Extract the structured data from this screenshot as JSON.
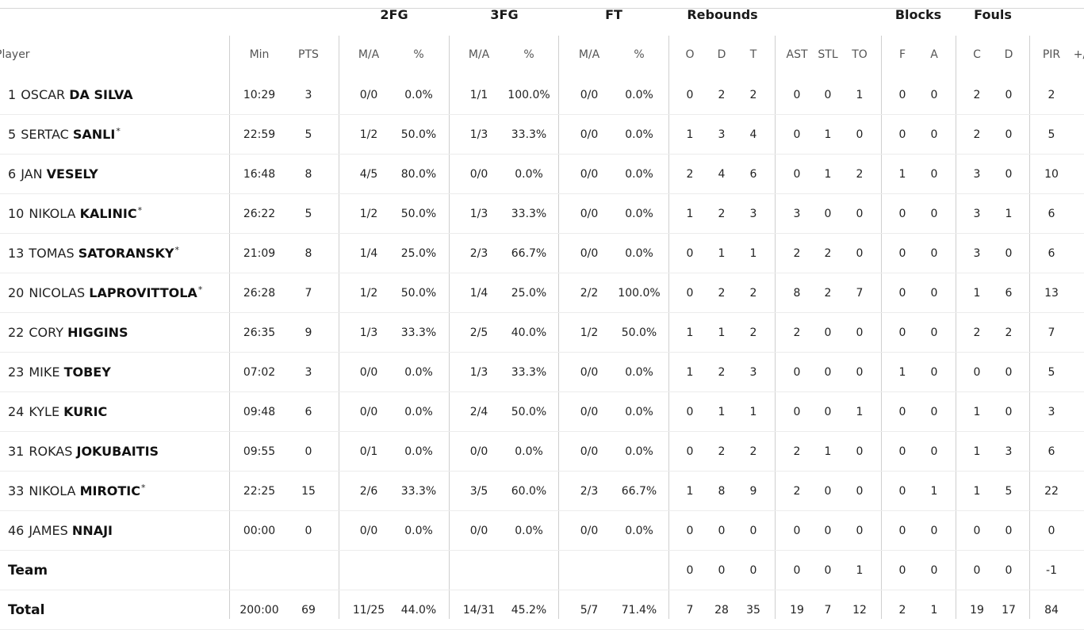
{
  "groups": {
    "fg2": "2FG",
    "fg3": "3FG",
    "ft": "FT",
    "rebounds": "Rebounds",
    "blocks": "Blocks",
    "fouls": "Fouls"
  },
  "columns": {
    "player": "Player",
    "min": "Min",
    "pts": "PTS",
    "fg2_ma": "M/A",
    "fg2_pct": "%",
    "fg3_ma": "M/A",
    "fg3_pct": "%",
    "ft_ma": "M/A",
    "ft_pct": "%",
    "reb_o": "O",
    "reb_d": "D",
    "reb_t": "T",
    "ast": "AST",
    "stl": "STL",
    "to": "TO",
    "blk_f": "F",
    "blk_a": "A",
    "foul_c": "C",
    "foul_d": "D",
    "pir": "PIR",
    "pm": "+/"
  },
  "players": [
    {
      "number": "1",
      "first": "OSCAR",
      "last": "DA SILVA",
      "starter": "",
      "min": "10:29",
      "pts": "3",
      "fg2_ma": "0/0",
      "fg2_pct": "0.0%",
      "fg3_ma": "1/1",
      "fg3_pct": "100.0%",
      "ft_ma": "0/0",
      "ft_pct": "0.0%",
      "reb_o": "0",
      "reb_d": "2",
      "reb_t": "2",
      "ast": "0",
      "stl": "0",
      "to": "1",
      "blk_f": "0",
      "blk_a": "0",
      "foul_c": "2",
      "foul_d": "0",
      "pir": "2"
    },
    {
      "number": "5",
      "first": "SERTAC",
      "last": "SANLI",
      "starter": "*",
      "min": "22:59",
      "pts": "5",
      "fg2_ma": "1/2",
      "fg2_pct": "50.0%",
      "fg3_ma": "1/3",
      "fg3_pct": "33.3%",
      "ft_ma": "0/0",
      "ft_pct": "0.0%",
      "reb_o": "1",
      "reb_d": "3",
      "reb_t": "4",
      "ast": "0",
      "stl": "1",
      "to": "0",
      "blk_f": "0",
      "blk_a": "0",
      "foul_c": "2",
      "foul_d": "0",
      "pir": "5"
    },
    {
      "number": "6",
      "first": "JAN",
      "last": "VESELY",
      "starter": "",
      "min": "16:48",
      "pts": "8",
      "fg2_ma": "4/5",
      "fg2_pct": "80.0%",
      "fg3_ma": "0/0",
      "fg3_pct": "0.0%",
      "ft_ma": "0/0",
      "ft_pct": "0.0%",
      "reb_o": "2",
      "reb_d": "4",
      "reb_t": "6",
      "ast": "0",
      "stl": "1",
      "to": "2",
      "blk_f": "1",
      "blk_a": "0",
      "foul_c": "3",
      "foul_d": "0",
      "pir": "10"
    },
    {
      "number": "10",
      "first": "NIKOLA",
      "last": "KALINIC",
      "starter": "*",
      "min": "26:22",
      "pts": "5",
      "fg2_ma": "1/2",
      "fg2_pct": "50.0%",
      "fg3_ma": "1/3",
      "fg3_pct": "33.3%",
      "ft_ma": "0/0",
      "ft_pct": "0.0%",
      "reb_o": "1",
      "reb_d": "2",
      "reb_t": "3",
      "ast": "3",
      "stl": "0",
      "to": "0",
      "blk_f": "0",
      "blk_a": "0",
      "foul_c": "3",
      "foul_d": "1",
      "pir": "6"
    },
    {
      "number": "13",
      "first": "TOMAS",
      "last": "SATORANSKY",
      "starter": "*",
      "min": "21:09",
      "pts": "8",
      "fg2_ma": "1/4",
      "fg2_pct": "25.0%",
      "fg3_ma": "2/3",
      "fg3_pct": "66.7%",
      "ft_ma": "0/0",
      "ft_pct": "0.0%",
      "reb_o": "0",
      "reb_d": "1",
      "reb_t": "1",
      "ast": "2",
      "stl": "2",
      "to": "0",
      "blk_f": "0",
      "blk_a": "0",
      "foul_c": "3",
      "foul_d": "0",
      "pir": "6"
    },
    {
      "number": "20",
      "first": "NICOLAS",
      "last": "LAPROVITTOLA",
      "starter": "*",
      "min": "26:28",
      "pts": "7",
      "fg2_ma": "1/2",
      "fg2_pct": "50.0%",
      "fg3_ma": "1/4",
      "fg3_pct": "25.0%",
      "ft_ma": "2/2",
      "ft_pct": "100.0%",
      "reb_o": "0",
      "reb_d": "2",
      "reb_t": "2",
      "ast": "8",
      "stl": "2",
      "to": "7",
      "blk_f": "0",
      "blk_a": "0",
      "foul_c": "1",
      "foul_d": "6",
      "pir": "13"
    },
    {
      "number": "22",
      "first": "CORY",
      "last": "HIGGINS",
      "starter": "",
      "min": "26:35",
      "pts": "9",
      "fg2_ma": "1/3",
      "fg2_pct": "33.3%",
      "fg3_ma": "2/5",
      "fg3_pct": "40.0%",
      "ft_ma": "1/2",
      "ft_pct": "50.0%",
      "reb_o": "1",
      "reb_d": "1",
      "reb_t": "2",
      "ast": "2",
      "stl": "0",
      "to": "0",
      "blk_f": "0",
      "blk_a": "0",
      "foul_c": "2",
      "foul_d": "2",
      "pir": "7"
    },
    {
      "number": "23",
      "first": "MIKE",
      "last": "TOBEY",
      "starter": "",
      "min": "07:02",
      "pts": "3",
      "fg2_ma": "0/0",
      "fg2_pct": "0.0%",
      "fg3_ma": "1/3",
      "fg3_pct": "33.3%",
      "ft_ma": "0/0",
      "ft_pct": "0.0%",
      "reb_o": "1",
      "reb_d": "2",
      "reb_t": "3",
      "ast": "0",
      "stl": "0",
      "to": "0",
      "blk_f": "1",
      "blk_a": "0",
      "foul_c": "0",
      "foul_d": "0",
      "pir": "5"
    },
    {
      "number": "24",
      "first": "KYLE",
      "last": "KURIC",
      "starter": "",
      "min": "09:48",
      "pts": "6",
      "fg2_ma": "0/0",
      "fg2_pct": "0.0%",
      "fg3_ma": "2/4",
      "fg3_pct": "50.0%",
      "ft_ma": "0/0",
      "ft_pct": "0.0%",
      "reb_o": "0",
      "reb_d": "1",
      "reb_t": "1",
      "ast": "0",
      "stl": "0",
      "to": "1",
      "blk_f": "0",
      "blk_a": "0",
      "foul_c": "1",
      "foul_d": "0",
      "pir": "3"
    },
    {
      "number": "31",
      "first": "ROKAS",
      "last": "JOKUBAITIS",
      "starter": "",
      "min": "09:55",
      "pts": "0",
      "fg2_ma": "0/1",
      "fg2_pct": "0.0%",
      "fg3_ma": "0/0",
      "fg3_pct": "0.0%",
      "ft_ma": "0/0",
      "ft_pct": "0.0%",
      "reb_o": "0",
      "reb_d": "2",
      "reb_t": "2",
      "ast": "2",
      "stl": "1",
      "to": "0",
      "blk_f": "0",
      "blk_a": "0",
      "foul_c": "1",
      "foul_d": "3",
      "pir": "6"
    },
    {
      "number": "33",
      "first": "NIKOLA",
      "last": "MIROTIC",
      "starter": "*",
      "min": "22:25",
      "pts": "15",
      "fg2_ma": "2/6",
      "fg2_pct": "33.3%",
      "fg3_ma": "3/5",
      "fg3_pct": "60.0%",
      "ft_ma": "2/3",
      "ft_pct": "66.7%",
      "reb_o": "1",
      "reb_d": "8",
      "reb_t": "9",
      "ast": "2",
      "stl": "0",
      "to": "0",
      "blk_f": "0",
      "blk_a": "1",
      "foul_c": "1",
      "foul_d": "5",
      "pir": "22"
    },
    {
      "number": "46",
      "first": "JAMES",
      "last": "NNAJI",
      "starter": "",
      "min": "00:00",
      "pts": "0",
      "fg2_ma": "0/0",
      "fg2_pct": "0.0%",
      "fg3_ma": "0/0",
      "fg3_pct": "0.0%",
      "ft_ma": "0/0",
      "ft_pct": "0.0%",
      "reb_o": "0",
      "reb_d": "0",
      "reb_t": "0",
      "ast": "0",
      "stl": "0",
      "to": "0",
      "blk_f": "0",
      "blk_a": "0",
      "foul_c": "0",
      "foul_d": "0",
      "pir": "0"
    }
  ],
  "team": {
    "label": "Team",
    "min": "",
    "pts": "",
    "fg2_ma": "",
    "fg2_pct": "",
    "fg3_ma": "",
    "fg3_pct": "",
    "ft_ma": "",
    "ft_pct": "",
    "reb_o": "0",
    "reb_d": "0",
    "reb_t": "0",
    "ast": "0",
    "stl": "0",
    "to": "1",
    "blk_f": "0",
    "blk_a": "0",
    "foul_c": "0",
    "foul_d": "0",
    "pir": "-1"
  },
  "total": {
    "label": "Total",
    "min": "200:00",
    "pts": "69",
    "fg2_ma": "11/25",
    "fg2_pct": "44.0%",
    "fg3_ma": "14/31",
    "fg3_pct": "45.2%",
    "ft_ma": "5/7",
    "ft_pct": "71.4%",
    "reb_o": "7",
    "reb_d": "28",
    "reb_t": "35",
    "ast": "19",
    "stl": "7",
    "to": "12",
    "blk_f": "2",
    "blk_a": "1",
    "foul_c": "19",
    "foul_d": "17",
    "pir": "84"
  }
}
